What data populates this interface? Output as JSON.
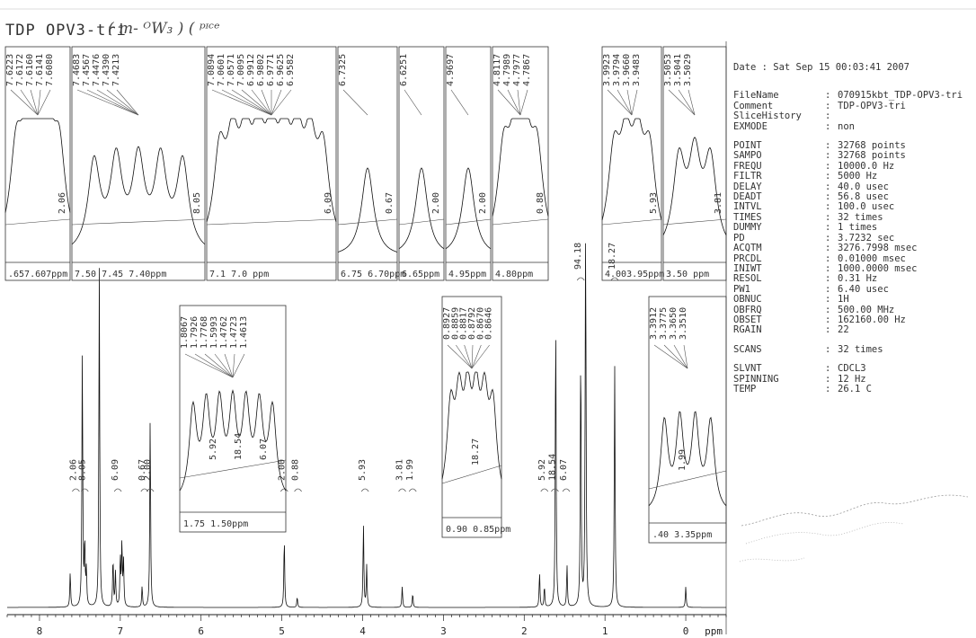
{
  "header": {
    "title": "TDP OPV3-tri",
    "handwritten": "( m- ᴼW₃ )  ( ᵖᶦᶜᵉ"
  },
  "params": {
    "date": "Date : Sat Sep 15 00:03:41 2007",
    "group1": [
      {
        "k": "FileName",
        "v": "070915kbt_TDP-OPV3-tri"
      },
      {
        "k": "Comment",
        "v": "TDP-OPV3-tri"
      },
      {
        "k": "SliceHistory",
        "v": ""
      },
      {
        "k": "EXMODE",
        "v": "non"
      }
    ],
    "group2": [
      {
        "k": "POINT",
        "v": "32768 points"
      },
      {
        "k": "SAMPO",
        "v": "32768 points"
      },
      {
        "k": "FREQU",
        "v": "10000.0 Hz"
      },
      {
        "k": "FILTR",
        "v": "5000 Hz"
      },
      {
        "k": "DELAY",
        "v": "40.0 usec"
      },
      {
        "k": "DEADT",
        "v": "56.8 usec"
      },
      {
        "k": "INTVL",
        "v": "100.0 usec"
      },
      {
        "k": "TIMES",
        "v": "32 times"
      },
      {
        "k": "DUMMY",
        "v": "1 times"
      },
      {
        "k": "PD",
        "v": "3.7232 sec"
      },
      {
        "k": "ACQTM",
        "v": "3276.7998 msec"
      },
      {
        "k": "PRCDL",
        "v": "0.01000 msec"
      },
      {
        "k": "INIWT",
        "v": "1000.0000 msec"
      },
      {
        "k": "RESOL",
        "v": "0.31 Hz"
      },
      {
        "k": "PW1",
        "v": "6.40 usec"
      },
      {
        "k": "OBNUC",
        "v": "1H"
      },
      {
        "k": "OBFRQ",
        "v": "500.00 MHz"
      },
      {
        "k": "OBSET",
        "v": "162160.00 Hz"
      },
      {
        "k": "RGAIN",
        "v": "22"
      }
    ],
    "group3": [
      {
        "k": "SCANS",
        "v": "32 times"
      }
    ],
    "group4": [
      {
        "k": "SLVNT",
        "v": "CDCL3"
      },
      {
        "k": "SPINNING",
        "v": "12 Hz"
      },
      {
        "k": "TEMP",
        "v": "26.1 C"
      }
    ]
  },
  "chart_data": {
    "type": "line",
    "xlabel": "ppm",
    "xlim": [
      8.4,
      -0.5
    ],
    "x_ticks": [
      "8",
      "7",
      "6",
      "5",
      "4",
      "3",
      "2",
      "1",
      "0"
    ],
    "peaks": [
      {
        "ppm": 7.62,
        "height": 0.1
      },
      {
        "ppm": 7.47,
        "height": 0.74
      },
      {
        "ppm": 7.44,
        "height": 0.18
      },
      {
        "ppm": 7.42,
        "height": 0.1
      },
      {
        "ppm": 7.26,
        "height": 0.98
      },
      {
        "ppm": 7.09,
        "height": 0.14
      },
      {
        "ppm": 7.06,
        "height": 0.1
      },
      {
        "ppm": 7.0,
        "height": 0.14
      },
      {
        "ppm": 6.98,
        "height": 0.18
      },
      {
        "ppm": 6.96,
        "height": 0.13
      },
      {
        "ppm": 6.73,
        "height": 0.06
      },
      {
        "ppm": 6.63,
        "height": 0.55
      },
      {
        "ppm": 4.97,
        "height": 0.2
      },
      {
        "ppm": 4.81,
        "height": 0.03
      },
      {
        "ppm": 3.99,
        "height": 0.24
      },
      {
        "ppm": 3.95,
        "height": 0.12
      },
      {
        "ppm": 3.51,
        "height": 0.06
      },
      {
        "ppm": 3.38,
        "height": 0.04
      },
      {
        "ppm": 1.81,
        "height": 0.1
      },
      {
        "ppm": 1.75,
        "height": 0.06
      },
      {
        "ppm": 1.61,
        "height": 0.84
      },
      {
        "ppm": 1.47,
        "height": 0.12
      },
      {
        "ppm": 1.3,
        "height": 0.75
      },
      {
        "ppm": 1.24,
        "height": 1.2
      },
      {
        "ppm": 0.88,
        "height": 0.7
      },
      {
        "ppm": 0.0,
        "height": 0.06
      }
    ],
    "integrals": [
      {
        "ppm": 7.55,
        "label": "2.06"
      },
      {
        "ppm": 7.44,
        "label": "8.05"
      },
      {
        "ppm": 7.03,
        "label": "6.09"
      },
      {
        "ppm": 6.7,
        "label": "0.67"
      },
      {
        "ppm": 6.63,
        "label": "2.00"
      },
      {
        "ppm": 4.97,
        "label": "2.00"
      },
      {
        "ppm": 4.8,
        "label": "0.88"
      },
      {
        "ppm": 3.97,
        "label": "5.93"
      },
      {
        "ppm": 3.51,
        "label": "3.81"
      },
      {
        "ppm": 3.38,
        "label": "1.99"
      },
      {
        "ppm": 1.75,
        "label": "5.92"
      },
      {
        "ppm": 1.62,
        "label": "18.54"
      },
      {
        "ppm": 1.48,
        "label": "6.07"
      },
      {
        "ppm": 1.3,
        "label": "94.18"
      },
      {
        "ppm": 0.88,
        "label": "18.27"
      }
    ],
    "insets_top": [
      {
        "labels": [
          "7.6223",
          "7.6172",
          "7.6160",
          "7.6141",
          "7.6080"
        ],
        "integral": "2.06",
        "axis": ".657.607ppm"
      },
      {
        "labels": [
          "7.4683",
          "7.4567",
          "7.4476",
          "7.4390",
          "7.4213"
        ],
        "integral": "8.05",
        "axis": "7.50  7.45  7.40ppm"
      },
      {
        "labels": [
          "7.0894",
          "7.0601",
          "7.0571",
          "7.0095",
          "6.9912",
          "6.9802",
          "6.9771",
          "6.9625",
          "6.9582"
        ],
        "integral": "6.09",
        "axis": "7.1  7.0  ppm"
      },
      {
        "labels": [
          "6.7325"
        ],
        "integral": "0.67",
        "axis": "6.75 6.70ppm"
      },
      {
        "labels": [
          "6.6251"
        ],
        "integral": "2.00",
        "axis": "6.65ppm"
      },
      {
        "labels": [
          "4.9697"
        ],
        "integral": "2.00",
        "axis": "4.95ppm"
      },
      {
        "labels": [
          "4.8117",
          "4.7989",
          "4.7977",
          "4.7867"
        ],
        "integral": "0.88",
        "axis": "4.80ppm"
      },
      {
        "labels": [
          "3.9923",
          "3.9794",
          "3.9660",
          "3.9483"
        ],
        "integral": "5.93",
        "axis": "4.003.95ppm"
      },
      {
        "labels": [
          "3.5053",
          "3.5041",
          "3.5029"
        ],
        "integral": "3.81",
        "axis": "3.50 ppm"
      }
    ],
    "insets_mid": [
      {
        "labels": [
          "1.8067",
          "1.7926",
          "1.7768",
          "1.5993",
          "1.4762",
          "1.4723",
          "1.4613"
        ],
        "integral": [
          "5.92",
          "18.54",
          "6.07"
        ],
        "axis": "1.75  1.50ppm"
      },
      {
        "labels": [
          "0.8927",
          "0.8859",
          "0.8817",
          "0.8792",
          "0.8670",
          "0.8646"
        ],
        "integral": "18.27",
        "axis": "0.90  0.85ppm"
      },
      {
        "labels": [
          "3.3912",
          "3.3775",
          "3.3650",
          "3.3510"
        ],
        "integral": "1.99",
        "axis": ".40  3.35ppm"
      }
    ]
  }
}
